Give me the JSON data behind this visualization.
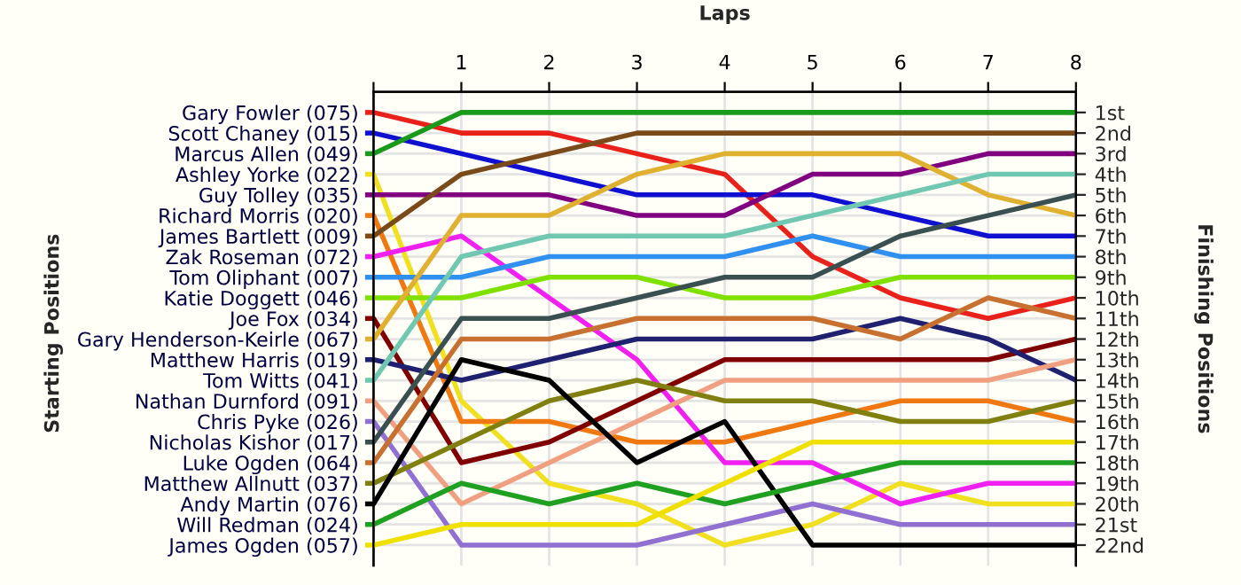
{
  "chart_data": {
    "type": "line",
    "xlabel": "Laps",
    "legend_title": "Starting Positions",
    "legend": "left",
    "y2label": "Finishing Positions",
    "x": [
      0,
      1,
      2,
      3,
      4,
      5,
      6,
      7,
      8
    ],
    "xlim": [
      0,
      8
    ],
    "xticks": [
      {
        "value": 0,
        "label": null
      },
      1,
      2,
      3,
      4,
      5,
      6,
      7,
      8
    ],
    "y2lim": [
      23,
      0
    ],
    "y2ticks": [
      {
        "value": 1,
        "label": "1st"
      },
      {
        "value": 2,
        "label": "2nd"
      },
      {
        "value": 3,
        "label": "3rd"
      },
      {
        "value": 4,
        "label": "4th"
      },
      {
        "value": 5,
        "label": "5th"
      },
      {
        "value": 6,
        "label": "6th"
      },
      {
        "value": 7,
        "label": "7th"
      },
      {
        "value": 8,
        "label": "8th"
      },
      {
        "value": 9,
        "label": "9th"
      },
      {
        "value": 10,
        "label": "10th"
      },
      {
        "value": 11,
        "label": "11th"
      },
      {
        "value": 12,
        "label": "12th"
      },
      {
        "value": 13,
        "label": "13th"
      },
      {
        "value": 14,
        "label": "14th"
      },
      {
        "value": 15,
        "label": "15th"
      },
      {
        "value": 16,
        "label": "16th"
      },
      {
        "value": 17,
        "label": "17th"
      },
      {
        "value": 18,
        "label": "18th"
      },
      {
        "value": 19,
        "label": "19th"
      },
      {
        "value": 20,
        "label": "20th"
      },
      {
        "value": 21,
        "label": "21st"
      },
      {
        "value": 22,
        "label": "22nd"
      }
    ],
    "grid": true,
    "marker": "none",
    "line_style": "solid",
    "series": [
      {
        "name": "Gary Fowler (075)",
        "axis": "y2",
        "color": "#e8221a",
        "values": [
          1,
          2,
          2,
          3,
          4,
          8,
          10,
          11,
          10
        ]
      },
      {
        "name": "Scott Chaney (015)",
        "axis": "y2",
        "color": "#1010d0",
        "values": [
          2,
          3,
          4,
          5,
          5,
          5,
          6,
          7,
          7
        ]
      },
      {
        "name": "Marcus Allen (049)",
        "axis": "y2",
        "color": "#1a9a1a",
        "values": [
          3,
          1,
          1,
          1,
          1,
          1,
          1,
          1,
          1
        ]
      },
      {
        "name": "Ashley Yorke (022)",
        "axis": "y2",
        "color": "#f0e020",
        "values": [
          4,
          15,
          19,
          20,
          22,
          21,
          19,
          20,
          20
        ]
      },
      {
        "name": "Guy Tolley (035)",
        "axis": "y2",
        "color": "#800080",
        "values": [
          5,
          5,
          5,
          6,
          6,
          4,
          4,
          3,
          3
        ]
      },
      {
        "name": "Richard Morris (020)",
        "axis": "y2",
        "color": "#f07810",
        "values": [
          6,
          16,
          16,
          17,
          17,
          16,
          15,
          15,
          16
        ]
      },
      {
        "name": "James Bartlett (009)",
        "axis": "y2",
        "color": "#7a4a1a",
        "values": [
          7,
          4,
          3,
          2,
          2,
          2,
          2,
          2,
          2
        ]
      },
      {
        "name": "Zak Roseman (072)",
        "axis": "y2",
        "color": "#f020f0",
        "values": [
          8,
          7,
          10,
          13,
          18,
          18,
          20,
          19,
          19
        ]
      },
      {
        "name": "Tom Oliphant (007)",
        "axis": "y2",
        "color": "#3090f0",
        "values": [
          9,
          9,
          8,
          8,
          8,
          7,
          8,
          8,
          8
        ]
      },
      {
        "name": "Katie Doggett (046)",
        "axis": "y2",
        "color": "#80e000",
        "values": [
          10,
          10,
          9,
          9,
          10,
          10,
          9,
          9,
          9
        ]
      },
      {
        "name": "Joe Fox (034)",
        "axis": "y2",
        "color": "#800000",
        "values": [
          11,
          18,
          17,
          15,
          13,
          13,
          13,
          13,
          12
        ]
      },
      {
        "name": "Gary Henderson-Keirle (067)",
        "axis": "y2",
        "color": "#e0b030",
        "values": [
          12,
          6,
          6,
          4,
          3,
          3,
          3,
          5,
          6
        ]
      },
      {
        "name": "Matthew Harris (019)",
        "axis": "y2",
        "color": "#202070",
        "values": [
          13,
          14,
          13,
          12,
          12,
          12,
          11,
          12,
          14
        ]
      },
      {
        "name": "Tom Witts (041)",
        "axis": "y2",
        "color": "#70c8b0",
        "values": [
          14,
          8,
          7,
          7,
          7,
          6,
          5,
          4,
          4
        ]
      },
      {
        "name": "Nathan Durnford (091)",
        "axis": "y2",
        "color": "#f0a080",
        "values": [
          15,
          20,
          18,
          16,
          14,
          14,
          14,
          14,
          13
        ]
      },
      {
        "name": "Chris Pyke (026)",
        "axis": "y2",
        "color": "#9070d0",
        "values": [
          16,
          22,
          22,
          22,
          21,
          20,
          21,
          21,
          21
        ]
      },
      {
        "name": "Nicholas Kishor (017)",
        "axis": "y2",
        "color": "#3a5050",
        "values": [
          17,
          11,
          11,
          10,
          9,
          9,
          7,
          6,
          5
        ]
      },
      {
        "name": "Luke Ogden (064)",
        "axis": "y2",
        "color": "#c87030",
        "values": [
          18,
          12,
          12,
          11,
          11,
          11,
          12,
          10,
          11
        ]
      },
      {
        "name": "Matthew Allnutt (037)",
        "axis": "y2",
        "color": "#808010",
        "values": [
          19,
          17,
          15,
          14,
          15,
          15,
          16,
          16,
          15
        ]
      },
      {
        "name": "Andy Martin (076)",
        "axis": "y2",
        "color": "#000000",
        "values": [
          20,
          13,
          14,
          18,
          16,
          22,
          22,
          22,
          22
        ]
      },
      {
        "name": "Will Redman (024)",
        "axis": "y2",
        "color": "#20a020",
        "values": [
          21,
          19,
          20,
          19,
          20,
          19,
          18,
          18,
          18
        ]
      },
      {
        "name": "James Ogden (057)",
        "axis": "y2",
        "color": "#f0e000",
        "values": [
          22,
          21,
          21,
          21,
          19,
          17,
          17,
          17,
          17
        ]
      }
    ]
  }
}
